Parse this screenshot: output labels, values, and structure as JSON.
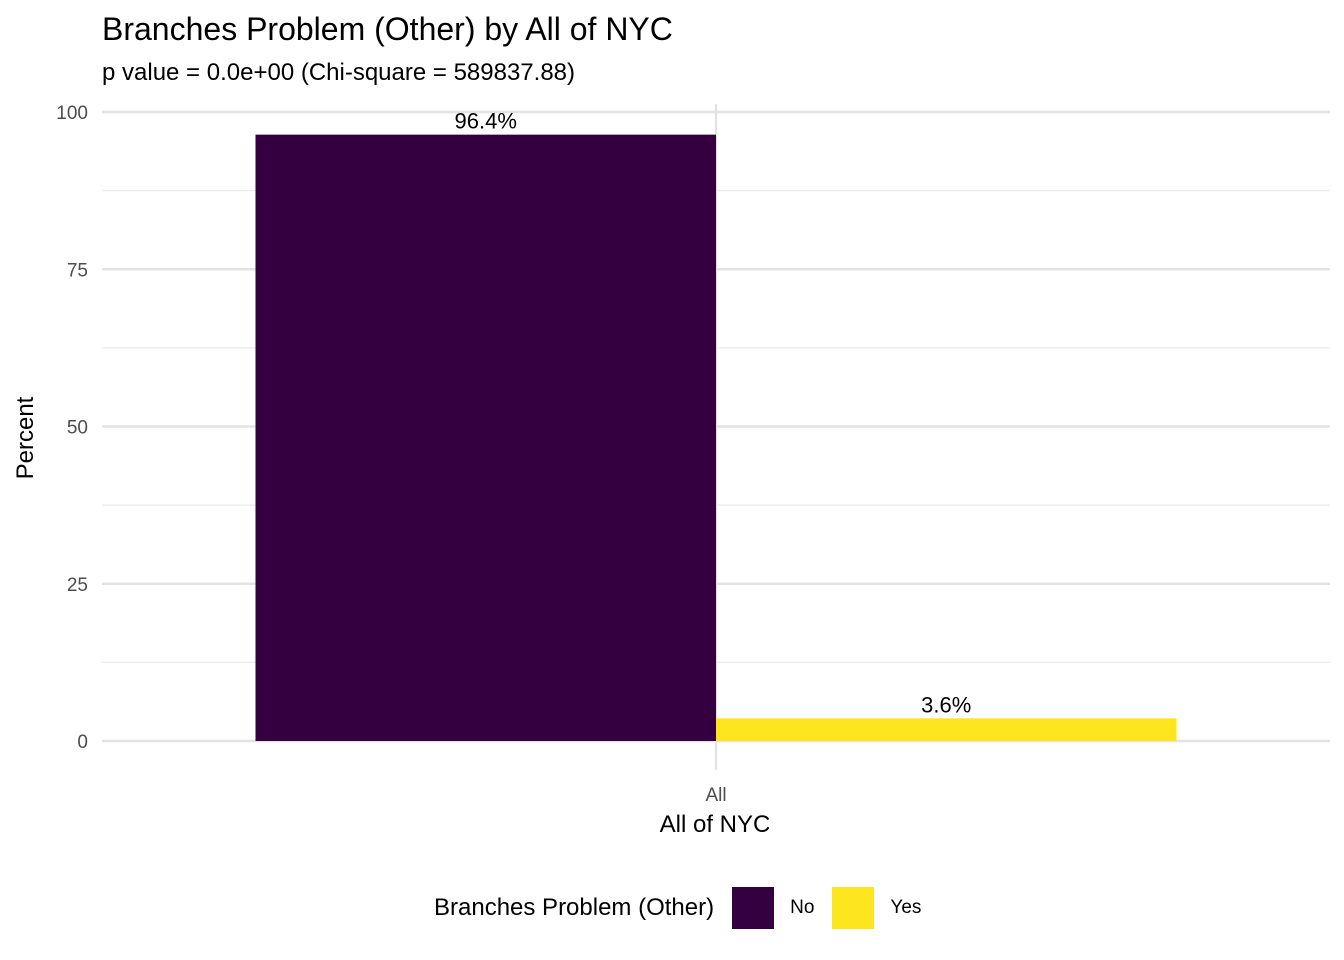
{
  "chart_data": {
    "type": "bar",
    "title": "Branches Problem (Other) by All of NYC",
    "subtitle": "p value = 0.0e+00 (Chi-square = 589837.88)",
    "xlabel": "All of NYC",
    "ylabel": "Percent",
    "categories": [
      "All"
    ],
    "series": [
      {
        "name": "No",
        "values": [
          96.4
        ],
        "label": "96.4%",
        "color": "#350040"
      },
      {
        "name": "Yes",
        "values": [
          3.6
        ],
        "label": "3.6%",
        "color": "#FDE51F"
      }
    ],
    "ylim": [
      0,
      100
    ],
    "yticks": [
      0,
      25,
      50,
      75,
      100
    ],
    "grid": true,
    "legend": {
      "title": "Branches Problem (Other)",
      "position": "bottom",
      "items": [
        "No",
        "Yes"
      ]
    }
  }
}
